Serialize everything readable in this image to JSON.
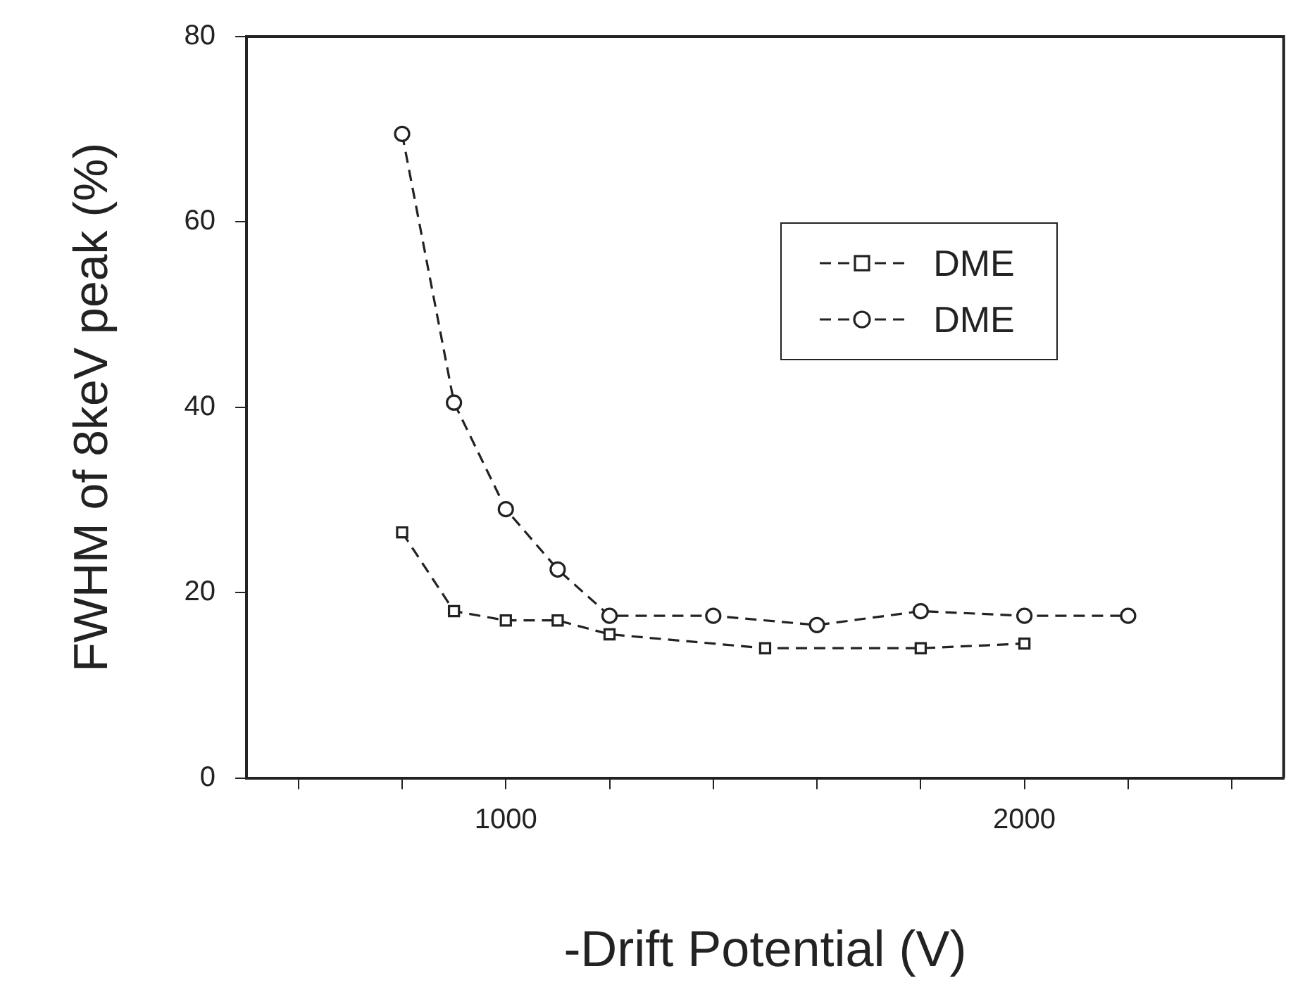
{
  "chart_data": {
    "type": "line",
    "xlabel": "-Drift Potential (V)",
    "ylabel": "FWHM of 8keV peak (%)",
    "xlim": [
      500,
      2500
    ],
    "xticks": [
      {
        "value": 600,
        "label": null
      },
      {
        "value": 800,
        "label": null
      },
      1000,
      {
        "value": 1200,
        "label": null
      },
      {
        "value": 1400,
        "label": null
      },
      {
        "value": 1600,
        "label": null
      },
      {
        "value": 1800,
        "label": null
      },
      2000,
      {
        "value": 2200,
        "label": null
      },
      {
        "value": 2400,
        "label": null
      }
    ],
    "ylim": [
      0,
      80
    ],
    "yticks": [
      0,
      20,
      40,
      60,
      80
    ],
    "grid": false,
    "legend": "top right",
    "series": [
      {
        "name": "DME",
        "color": "#222222",
        "marker": "square",
        "line_style": "dashed",
        "x": [
          800,
          900,
          1000,
          1100,
          1200,
          1500,
          1800,
          2000
        ],
        "values": [
          26.5,
          18,
          17,
          17,
          15.5,
          14,
          14,
          14.5
        ]
      },
      {
        "name": "DME",
        "color": "#222222",
        "marker": "circle",
        "line_style": "dashed",
        "x": [
          800,
          900,
          1000,
          1100,
          1200,
          1400,
          1600,
          1800,
          2000,
          2200
        ],
        "values": [
          69.5,
          40.5,
          29,
          22.5,
          17.5,
          17.5,
          16.5,
          18,
          17.5,
          17.5
        ]
      }
    ]
  }
}
